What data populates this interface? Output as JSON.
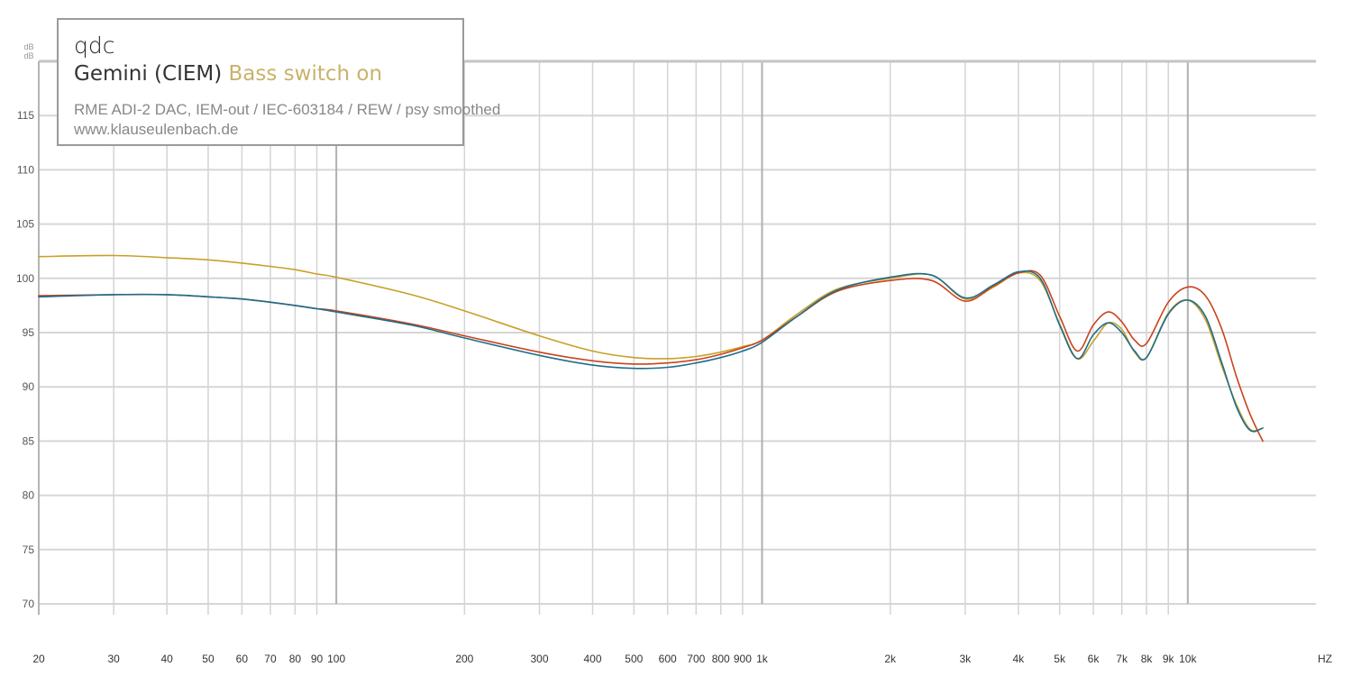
{
  "legend": {
    "brand": "qdc",
    "model": "Gemini (CIEM)",
    "variant": "Bass switch on",
    "rig": "RME ADI-2 DAC, IEM-out / IEC-603184 / REW / psy smoothed",
    "site": "www.klauseulenbach.de"
  },
  "chart_data": {
    "type": "line",
    "x_scale": "log",
    "xlim": [
      20,
      20000
    ],
    "ylim": [
      70,
      120
    ],
    "y_unit_label": "dB",
    "x_unit_label": "HZ",
    "grid": true,
    "y_ticks": [
      70,
      75,
      80,
      85,
      90,
      95,
      100,
      105,
      110,
      115
    ],
    "x_ticks": [
      {
        "v": 20,
        "label": "20"
      },
      {
        "v": 30,
        "label": "30"
      },
      {
        "v": 40,
        "label": "40"
      },
      {
        "v": 50,
        "label": "50"
      },
      {
        "v": 60,
        "label": "60"
      },
      {
        "v": 70,
        "label": "70"
      },
      {
        "v": 80,
        "label": "80"
      },
      {
        "v": 90,
        "label": "90"
      },
      {
        "v": 100,
        "label": "100"
      },
      {
        "v": 200,
        "label": "200"
      },
      {
        "v": 300,
        "label": "300"
      },
      {
        "v": 400,
        "label": "400"
      },
      {
        "v": 500,
        "label": "500"
      },
      {
        "v": 600,
        "label": "600"
      },
      {
        "v": 700,
        "label": "700"
      },
      {
        "v": 800,
        "label": "800"
      },
      {
        "v": 900,
        "label": "900"
      },
      {
        "v": 1000,
        "label": "1k"
      },
      {
        "v": 2000,
        "label": "2k"
      },
      {
        "v": 3000,
        "label": "3k"
      },
      {
        "v": 4000,
        "label": "4k"
      },
      {
        "v": 5000,
        "label": "5k"
      },
      {
        "v": 6000,
        "label": "6k"
      },
      {
        "v": 7000,
        "label": "7k"
      },
      {
        "v": 8000,
        "label": "8k"
      },
      {
        "v": 9000,
        "label": "9k"
      },
      {
        "v": 10000,
        "label": "10k"
      }
    ],
    "series": [
      {
        "color": "#c8a028",
        "x": [
          20,
          30,
          40,
          50,
          60,
          70,
          80,
          90,
          100,
          150,
          200,
          300,
          400,
          500,
          600,
          700,
          800,
          900,
          1000,
          1200,
          1500,
          2000,
          2500,
          3000,
          3500,
          4000,
          4500,
          5000,
          5500,
          6000,
          6500,
          7000,
          7500,
          8000,
          9000,
          10000,
          11000,
          12000,
          13000,
          14000,
          15000
        ],
        "y": [
          102.0,
          102.1,
          101.9,
          101.7,
          101.4,
          101.1,
          100.8,
          100.4,
          100.1,
          98.5,
          97.0,
          94.7,
          93.3,
          92.7,
          92.6,
          92.8,
          93.2,
          93.7,
          94.3,
          96.6,
          99.0,
          100.0,
          100.3,
          98.1,
          99.2,
          100.5,
          99.8,
          95.8,
          92.6,
          94.2,
          95.9,
          95.3,
          93.2,
          92.7,
          96.8,
          98.0,
          96.2,
          92.0,
          88.4,
          86.1,
          86.2
        ]
      },
      {
        "color": "#c9431c",
        "x": [
          20,
          30,
          40,
          50,
          60,
          70,
          80,
          90,
          100,
          150,
          200,
          300,
          400,
          500,
          600,
          700,
          800,
          900,
          1000,
          1200,
          1500,
          2000,
          2500,
          3000,
          3500,
          4000,
          4500,
          5000,
          5500,
          6000,
          6500,
          7000,
          7500,
          8000,
          9000,
          10000,
          11000,
          12000,
          13000,
          14000,
          15000
        ],
        "y": [
          98.4,
          98.5,
          98.5,
          98.3,
          98.1,
          97.8,
          97.5,
          97.2,
          97.0,
          95.8,
          94.7,
          93.2,
          92.4,
          92.1,
          92.2,
          92.5,
          93.0,
          93.6,
          94.3,
          96.4,
          98.8,
          99.8,
          99.8,
          97.9,
          99.3,
          100.5,
          100.3,
          96.5,
          93.3,
          95.7,
          96.9,
          96.0,
          94.3,
          94.0,
          97.8,
          99.2,
          98.4,
          95.4,
          91.0,
          87.5,
          85.0
        ]
      },
      {
        "color": "#1f6e8a",
        "x": [
          20,
          30,
          40,
          50,
          60,
          70,
          80,
          90,
          100,
          150,
          200,
          300,
          400,
          500,
          600,
          700,
          800,
          900,
          1000,
          1200,
          1500,
          2000,
          2500,
          3000,
          3500,
          4000,
          4500,
          5000,
          5500,
          6000,
          6500,
          7000,
          7500,
          8000,
          9000,
          10000,
          11000,
          12000,
          13000,
          14000,
          15000
        ],
        "y": [
          98.3,
          98.5,
          98.5,
          98.3,
          98.1,
          97.8,
          97.5,
          97.2,
          96.9,
          95.7,
          94.5,
          92.9,
          92.0,
          91.7,
          91.8,
          92.2,
          92.7,
          93.3,
          94.1,
          96.4,
          98.9,
          100.1,
          100.3,
          98.2,
          99.4,
          100.6,
          100.0,
          95.7,
          92.6,
          94.8,
          95.9,
          95.0,
          93.3,
          92.7,
          96.7,
          98.0,
          96.5,
          92.3,
          88.2,
          86.0,
          86.2
        ]
      }
    ]
  }
}
